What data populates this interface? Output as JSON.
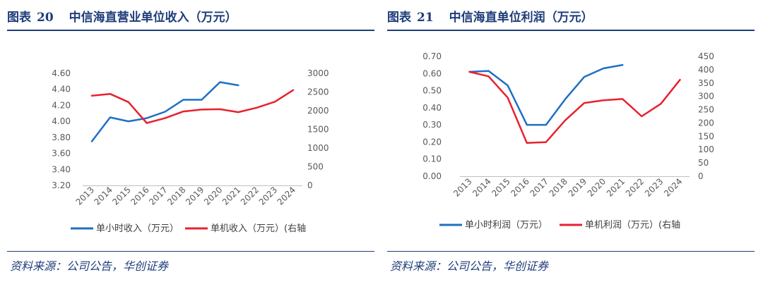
{
  "left": {
    "label": "图表",
    "number": "20",
    "title": "中信海直营业单位收入（万元）",
    "source": "资料来源：公司公告，华创证券"
  },
  "right": {
    "label": "图表",
    "number": "21",
    "title": "中信海直单位利润（万元）",
    "source": "资料来源：公司公告，华创证券"
  },
  "colors": {
    "blue": "#1f6fc5",
    "red": "#e8212f",
    "axis": "#bfbfbf",
    "text": "#595959"
  },
  "chart_data": [
    {
      "type": "line",
      "title": "中信海直营业单位收入（万元）",
      "categories": [
        "2013",
        "2014",
        "2015",
        "2016",
        "2017",
        "2018",
        "2019",
        "2020",
        "2021",
        "2022",
        "2023",
        "2024"
      ],
      "y_left": {
        "ticks": [
          "4.60",
          "4.40",
          "4.20",
          "4.00",
          "3.80",
          "3.60",
          "3.40",
          "3.20"
        ],
        "min": 3.2,
        "max": 4.6
      },
      "y_right": {
        "ticks": [
          "3000",
          "2500",
          "2000",
          "1500",
          "1000",
          "500",
          "0"
        ],
        "min": 0,
        "max": 3000
      },
      "series": [
        {
          "name": "单小时收入（万元）",
          "axis": "left",
          "color": "blue",
          "values": [
            3.75,
            4.05,
            4.0,
            4.04,
            4.12,
            4.27,
            4.27,
            4.49,
            4.45,
            null,
            null,
            null
          ]
        },
        {
          "name": "单机收入（万元）(右轴",
          "axis": "right",
          "color": "red",
          "values": [
            2400,
            2450,
            2230,
            1670,
            1800,
            1980,
            2030,
            2040,
            1960,
            2080,
            2240,
            2550
          ]
        }
      ],
      "legend": "bottom"
    },
    {
      "type": "line",
      "title": "中信海直单位利润（万元）",
      "categories": [
        "2013",
        "2014",
        "2015",
        "2016",
        "2017",
        "2018",
        "2019",
        "2020",
        "2021",
        "2022",
        "2023",
        "2024"
      ],
      "y_left": {
        "ticks": [
          "0.70",
          "0.60",
          "0.50",
          "0.40",
          "0.30",
          "0.20",
          "0.10",
          "0.00"
        ],
        "min": 0,
        "max": 0.7
      },
      "y_right": {
        "ticks": [
          "450",
          "400",
          "350",
          "300",
          "250",
          "200",
          "150",
          "100",
          "50",
          "0"
        ],
        "min": 0,
        "max": 450
      },
      "series": [
        {
          "name": "单小时利润（万元）",
          "axis": "left",
          "color": "blue",
          "values": [
            0.61,
            0.615,
            0.53,
            0.3,
            0.3,
            0.45,
            0.58,
            0.63,
            0.65,
            null,
            null,
            null
          ]
        },
        {
          "name": "单机利润（万元）(右轴",
          "axis": "right",
          "color": "red",
          "values": [
            392,
            375,
            295,
            125,
            128,
            210,
            275,
            285,
            290,
            225,
            272,
            362
          ]
        }
      ],
      "legend": "bottom"
    }
  ]
}
